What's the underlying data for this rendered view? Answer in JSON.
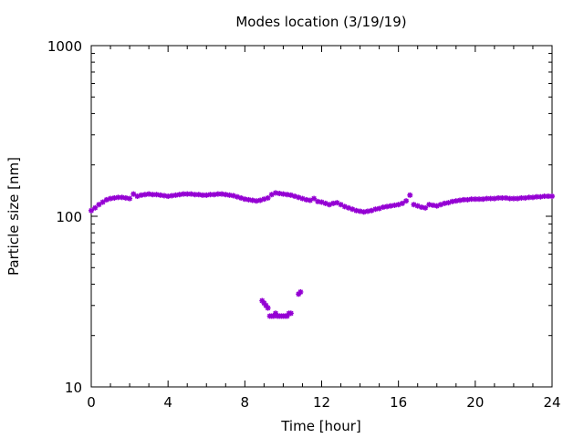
{
  "chart_data": {
    "type": "scatter",
    "title": "Modes location (3/19/19)",
    "xlabel": "Time [hour]",
    "ylabel": "Particle size [nm]",
    "xlim": [
      0,
      24
    ],
    "ylim": [
      10,
      1000
    ],
    "y_scale": "log",
    "x_ticks": [
      0,
      4,
      8,
      12,
      16,
      20,
      24
    ],
    "y_ticks": [
      10,
      100,
      1000
    ],
    "x_tick_labels": [
      "0",
      "4",
      "8",
      "12",
      "16",
      "20",
      "24"
    ],
    "y_tick_labels": [
      "10",
      "100",
      "1000"
    ],
    "grid": false,
    "legend": "none",
    "marker_color": "#9400d3",
    "series": [
      {
        "x": [
          0.0,
          0.2,
          0.4,
          0.6,
          0.8,
          1.0,
          1.2,
          1.4,
          1.6,
          1.8,
          2.0,
          2.2,
          2.4,
          2.6,
          2.8,
          3.0,
          3.2,
          3.4,
          3.6,
          3.8,
          4.0,
          4.2,
          4.4,
          4.6,
          4.8,
          5.0,
          5.2,
          5.4,
          5.6,
          5.8,
          6.0,
          6.2,
          6.4,
          6.6,
          6.8,
          7.0,
          7.2,
          7.4,
          7.6,
          7.8,
          8.0,
          8.2,
          8.4,
          8.6,
          8.8,
          9.0,
          9.2,
          9.4,
          9.6,
          9.8,
          10.0,
          10.2,
          10.4,
          10.6,
          10.8,
          11.0,
          11.2,
          11.4,
          11.6,
          11.8,
          12.0,
          12.2,
          12.4,
          12.6,
          12.8,
          13.0,
          13.2,
          13.4,
          13.6,
          13.8,
          14.0,
          14.2,
          14.4,
          14.6,
          14.8,
          15.0,
          15.2,
          15.4,
          15.6,
          15.8,
          16.0,
          16.2,
          16.4,
          16.6,
          16.8,
          17.0,
          17.2,
          17.4,
          17.6,
          17.8,
          18.0,
          18.2,
          18.4,
          18.6,
          18.8,
          19.0,
          19.2,
          19.4,
          19.6,
          19.8,
          20.0,
          20.2,
          20.4,
          20.6,
          20.8,
          21.0,
          21.2,
          21.4,
          21.6,
          21.8,
          22.0,
          22.2,
          22.4,
          22.6,
          22.8,
          23.0,
          23.2,
          23.4,
          23.6,
          23.8,
          24.0
        ],
        "y": [
          108,
          112,
          117,
          121,
          125,
          127,
          128,
          129,
          129,
          128,
          127,
          135,
          131,
          133,
          134,
          135,
          134,
          134,
          133,
          132,
          131,
          132,
          133,
          134,
          135,
          135,
          135,
          134,
          134,
          133,
          133,
          134,
          134,
          135,
          135,
          134,
          133,
          132,
          130,
          128,
          126,
          125,
          124,
          123,
          124,
          126,
          128,
          134,
          137,
          136,
          135,
          134,
          133,
          131,
          129,
          127,
          125,
          124,
          127,
          122,
          121,
          119,
          117,
          119,
          120,
          117,
          114,
          112,
          110,
          108,
          107,
          106,
          107,
          108,
          110,
          111,
          113,
          114,
          115,
          116,
          117,
          119,
          123,
          133,
          117,
          115,
          113,
          112,
          117,
          116,
          115,
          117,
          119,
          120,
          122,
          123,
          124,
          125,
          125,
          126,
          126,
          126,
          126,
          127,
          127,
          127,
          128,
          128,
          128,
          127,
          127,
          127,
          128,
          128,
          129,
          129,
          130,
          130,
          131,
          131,
          131
        ]
      },
      {
        "x": [
          8.9,
          9.0,
          9.1,
          9.2,
          9.3,
          9.4,
          9.5,
          9.6,
          9.7,
          9.8,
          9.9,
          10.0,
          10.1,
          10.2,
          10.3,
          10.4,
          10.8,
          10.9
        ],
        "y": [
          32,
          31,
          30,
          29,
          26,
          26,
          26,
          27,
          26,
          26,
          26,
          26,
          26,
          26,
          27,
          27,
          35,
          36
        ]
      }
    ]
  }
}
